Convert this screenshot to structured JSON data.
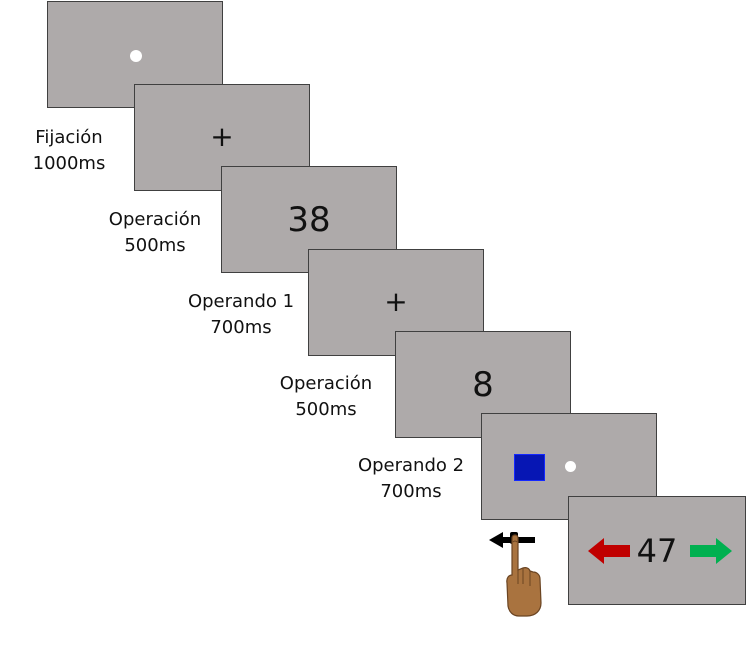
{
  "stages": [
    {
      "label": "Fijación",
      "duration": "1000ms"
    },
    {
      "label": "Operación",
      "duration": "500ms"
    },
    {
      "label": "Operando 1",
      "duration": "700ms"
    },
    {
      "label": "Operación",
      "duration": "500ms"
    },
    {
      "label": "Operando 2",
      "duration": "700ms"
    }
  ],
  "screens": {
    "fixation_symbol": "+",
    "operand_1": "38",
    "operation_symbol": "+",
    "operand_2": "8",
    "result": "47"
  },
  "colors": {
    "screen_bg": "#aeaaaa",
    "square": "#0616b4",
    "left_arrow": "#c00000",
    "right_arrow": "#00b050",
    "hand": "#a9733f"
  },
  "icons": {
    "hand": "pointing-hand-icon",
    "left": "left-arrow-icon",
    "right": "right-arrow-icon"
  }
}
